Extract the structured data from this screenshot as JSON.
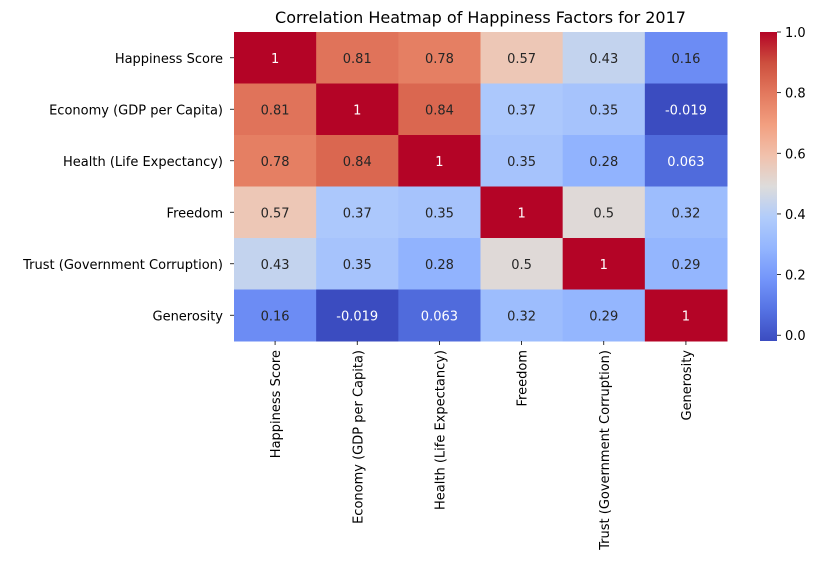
{
  "chart_data": {
    "type": "heatmap",
    "title": "Correlation Heatmap of Happiness Factors for 2017",
    "xlabel": "",
    "ylabel": "",
    "rows": [
      "Happiness Score",
      "Economy (GDP per Capita)",
      "Health (Life Expectancy)",
      "Freedom",
      "Trust (Government Corruption)",
      "Generosity"
    ],
    "columns": [
      "Happiness Score",
      "Economy (GDP per Capita)",
      "Health (Life Expectancy)",
      "Freedom",
      "Trust (Government Corruption)",
      "Generosity"
    ],
    "values": [
      [
        1,
        0.81,
        0.78,
        0.57,
        0.43,
        0.16
      ],
      [
        0.81,
        1,
        0.84,
        0.37,
        0.35,
        -0.019
      ],
      [
        0.78,
        0.84,
        1,
        0.35,
        0.28,
        0.063
      ],
      [
        0.57,
        0.37,
        0.35,
        1,
        0.5,
        0.32
      ],
      [
        0.43,
        0.35,
        0.28,
        0.5,
        1,
        0.29
      ],
      [
        0.16,
        -0.019,
        0.063,
        0.32,
        0.29,
        1
      ]
    ],
    "value_labels": [
      [
        "1",
        "0.81",
        "0.78",
        "0.57",
        "0.43",
        "0.16"
      ],
      [
        "0.81",
        "1",
        "0.84",
        "0.37",
        "0.35",
        "-0.019"
      ],
      [
        "0.78",
        "0.84",
        "1",
        "0.35",
        "0.28",
        "0.063"
      ],
      [
        "0.57",
        "0.37",
        "0.35",
        "1",
        "0.5",
        "0.32"
      ],
      [
        "0.43",
        "0.35",
        "0.28",
        "0.5",
        "1",
        "0.29"
      ],
      [
        "0.16",
        "-0.019",
        "0.063",
        "0.32",
        "0.29",
        "1"
      ]
    ],
    "colormap": "coolwarm",
    "colorbar": {
      "range": [
        -0.019,
        1.0
      ],
      "ticks": [
        0.0,
        0.2,
        0.4,
        0.6,
        0.8,
        1.0
      ],
      "tick_labels": [
        "0.0",
        "0.2",
        "0.4",
        "0.6",
        "0.8",
        "1.0"
      ]
    },
    "grid": false,
    "legend": "colorbar-right"
  }
}
